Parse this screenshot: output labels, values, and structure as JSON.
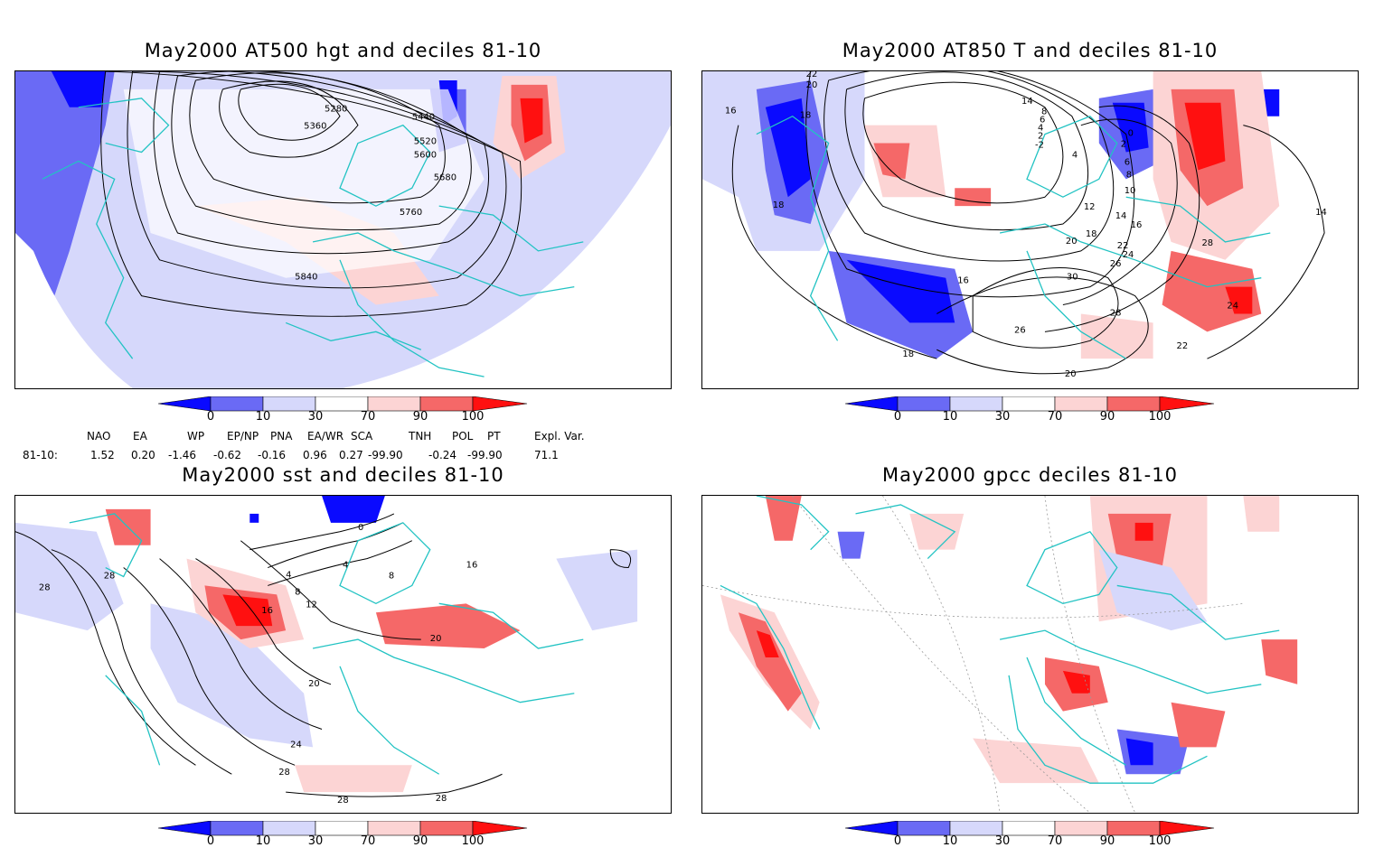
{
  "panels": [
    {
      "title": "May2000 AT500 hgt and deciles 81-10",
      "contours": [
        "5280",
        "5360",
        "5440",
        "5520",
        "5600",
        "5680",
        "5760",
        "5840"
      ]
    },
    {
      "title": "May2000 AT850 T and deciles 81-10",
      "contours": [
        "22",
        "20",
        "16",
        "18",
        "18",
        "0",
        "2",
        "4",
        "6",
        "8",
        "10",
        "12",
        "14",
        "16",
        "18",
        "20",
        "22",
        "24",
        "26",
        "28",
        "30",
        "28",
        "26",
        "24",
        "22",
        "20",
        "18",
        "16",
        "14",
        "-2",
        "2",
        "4",
        "6",
        "8",
        "14"
      ]
    },
    {
      "title": "May2000 sst and deciles 81-10",
      "contours": [
        "28",
        "28",
        "0",
        "4",
        "4",
        "8",
        "8",
        "12",
        "16",
        "16",
        "20",
        "20",
        "24",
        "28",
        "28",
        "28"
      ]
    },
    {
      "title": "May2000 gpcc deciles 81-10",
      "contours": []
    }
  ],
  "colorbar": {
    "ticks": [
      "0",
      "10",
      "30",
      "70",
      "90",
      "100"
    ],
    "colors": [
      "#0a0aff",
      "#6a6af5",
      "#d6d8fb",
      "#ffffff",
      "#fcd4d4",
      "#f56868",
      "#ff1010"
    ]
  },
  "indices": {
    "headers": [
      "NAO",
      "EA",
      "WP",
      "EP/NP",
      "PNA",
      "EA/WR",
      "SCA",
      "TNH",
      "POL",
      "PT",
      "Expl. Var."
    ],
    "row_label": "81-10:",
    "values": [
      "1.52",
      "0.20",
      "-1.46",
      "-0.62",
      "-0.16",
      "0.96",
      "0.27",
      "-99.90",
      "-0.24",
      "-99.90",
      "71.1"
    ]
  },
  "map_colors": {
    "coast": "#22c3c3",
    "blue_dark": "#0a0aff",
    "blue_mid": "#6a6af5",
    "blue_light": "#d6d8fb",
    "red_light": "#fcd4d4",
    "red_mid": "#f56868",
    "red_dark": "#ff1010"
  }
}
